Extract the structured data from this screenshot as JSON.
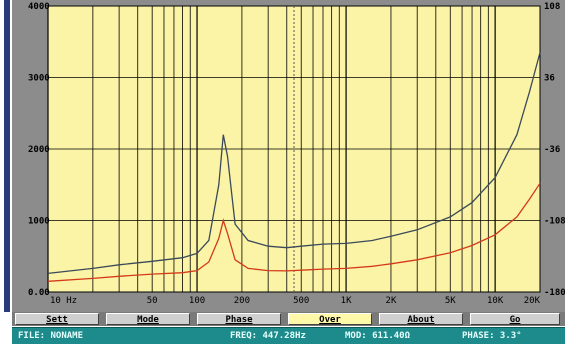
{
  "chart_data": {
    "type": "line",
    "x_scale": "log",
    "xlim": [
      10,
      20000
    ],
    "ylim_left": [
      0,
      4000
    ],
    "ylim_right": [
      -180,
      108
    ],
    "y_left_ticks": [
      "4000",
      "3000",
      "2000",
      "1000",
      "0.00"
    ],
    "y_right_ticks": [
      "108",
      "36",
      "-36",
      "-108",
      "-180"
    ],
    "x_tick_labels": [
      {
        "x": 10,
        "label": "10  Hz"
      },
      {
        "x": 50,
        "label": "50"
      },
      {
        "x": 100,
        "label": "100"
      },
      {
        "x": 200,
        "label": "200"
      },
      {
        "x": 500,
        "label": "500"
      },
      {
        "x": 1000,
        "label": "1K"
      },
      {
        "x": 2000,
        "label": "2K"
      },
      {
        "x": 5000,
        "label": "5K"
      },
      {
        "x": 10000,
        "label": "10K"
      },
      {
        "x": 20000,
        "label": "20K"
      }
    ],
    "grid": true,
    "cursor_x": 447.28,
    "background": "#fbf3a6",
    "series": [
      {
        "color": "#3a4a5a",
        "points": [
          [
            10,
            260
          ],
          [
            20,
            330
          ],
          [
            30,
            380
          ],
          [
            50,
            430
          ],
          [
            80,
            480
          ],
          [
            100,
            540
          ],
          [
            120,
            720
          ],
          [
            140,
            1500
          ],
          [
            150,
            2200
          ],
          [
            160,
            1900
          ],
          [
            180,
            950
          ],
          [
            220,
            720
          ],
          [
            300,
            640
          ],
          [
            400,
            620
          ],
          [
            500,
            640
          ],
          [
            700,
            670
          ],
          [
            1000,
            680
          ],
          [
            1500,
            720
          ],
          [
            2000,
            780
          ],
          [
            3000,
            870
          ],
          [
            5000,
            1050
          ],
          [
            7000,
            1250
          ],
          [
            10000,
            1600
          ],
          [
            14000,
            2200
          ],
          [
            17000,
            2800
          ],
          [
            20000,
            3350
          ]
        ]
      },
      {
        "color": "#d43a1a",
        "points": [
          [
            10,
            150
          ],
          [
            20,
            190
          ],
          [
            30,
            220
          ],
          [
            50,
            250
          ],
          [
            80,
            270
          ],
          [
            100,
            300
          ],
          [
            120,
            420
          ],
          [
            140,
            750
          ],
          [
            150,
            1000
          ],
          [
            160,
            820
          ],
          [
            180,
            450
          ],
          [
            220,
            330
          ],
          [
            300,
            300
          ],
          [
            400,
            295
          ],
          [
            500,
            305
          ],
          [
            700,
            320
          ],
          [
            1000,
            330
          ],
          [
            1500,
            360
          ],
          [
            2000,
            395
          ],
          [
            3000,
            450
          ],
          [
            5000,
            550
          ],
          [
            7000,
            650
          ],
          [
            10000,
            800
          ],
          [
            14000,
            1050
          ],
          [
            17000,
            1300
          ],
          [
            20000,
            1520
          ]
        ]
      }
    ]
  },
  "toolbar": {
    "buttons": [
      {
        "label": "Sett"
      },
      {
        "label": "Mode"
      },
      {
        "label": "Phase"
      },
      {
        "label": "Over"
      },
      {
        "label": "About"
      },
      {
        "label": "Go"
      }
    ]
  },
  "status": {
    "file": "FILE: NONAME",
    "freq": "FREQ: 447.28Hz",
    "mod": "MOD: 611.40Ω",
    "phase": "PHASE: 3.3°"
  }
}
